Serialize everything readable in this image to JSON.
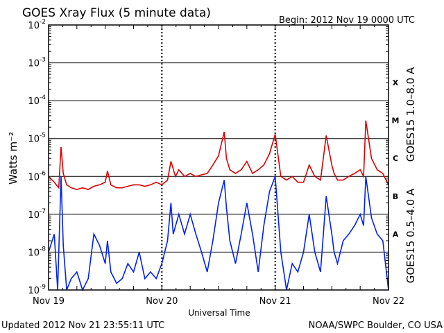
{
  "header": {
    "title": "GOES Xray Flux (5 minute data)",
    "begin": "Begin:  2012 Nov 19 0000 UTC"
  },
  "footer": {
    "updated": "Updated 2012 Nov 21 23:55:11 UTC",
    "credit": "NOAA/SWPC Boulder, CO USA"
  },
  "chart_data": {
    "type": "line",
    "title": "GOES Xray Flux (5 minute data)",
    "xlabel": "Universal Time",
    "ylabel": "Watts m⁻²",
    "yscale": "log",
    "ylim": [
      1e-09,
      0.01
    ],
    "xlim": [
      0,
      3
    ],
    "x_ticks": [
      {
        "value": 0,
        "label": "Nov 19"
      },
      {
        "value": 1,
        "label": "Nov 20"
      },
      {
        "value": 2,
        "label": "Nov 21"
      },
      {
        "value": 3,
        "label": "Nov 22"
      }
    ],
    "y_ticks": [
      {
        "exp": -9,
        "value": 1e-09
      },
      {
        "exp": -8,
        "value": 1e-08
      },
      {
        "exp": -7,
        "value": 1e-07
      },
      {
        "exp": -6,
        "value": 1e-06
      },
      {
        "exp": -5,
        "value": 1e-05
      },
      {
        "exp": -4,
        "value": 0.0001
      },
      {
        "exp": -3,
        "value": 0.001
      },
      {
        "exp": -2,
        "value": 0.01
      }
    ],
    "flare_classes": [
      {
        "label": "X",
        "value": 0.0003
      },
      {
        "label": "M",
        "value": 3e-05
      },
      {
        "label": "C",
        "value": 3e-06
      },
      {
        "label": "B",
        "value": 3e-07
      },
      {
        "label": "A",
        "value": 3e-08
      }
    ],
    "grid": true,
    "series": [
      {
        "name": "GOES15 1.0–8.0 A",
        "color": "#dd0000",
        "x": [
          0,
          0.05,
          0.09,
          0.11,
          0.13,
          0.16,
          0.2,
          0.25,
          0.3,
          0.35,
          0.4,
          0.45,
          0.5,
          0.52,
          0.55,
          0.6,
          0.65,
          0.7,
          0.75,
          0.8,
          0.85,
          0.9,
          0.95,
          1.0,
          1.05,
          1.08,
          1.12,
          1.15,
          1.2,
          1.25,
          1.3,
          1.35,
          1.4,
          1.45,
          1.5,
          1.55,
          1.57,
          1.6,
          1.65,
          1.7,
          1.75,
          1.8,
          1.85,
          1.9,
          1.95,
          2.0,
          2.05,
          2.1,
          2.15,
          2.2,
          2.25,
          2.3,
          2.35,
          2.4,
          2.45,
          2.5,
          2.52,
          2.55,
          2.6,
          2.65,
          2.7,
          2.75,
          2.78,
          2.8,
          2.85,
          2.9,
          2.95,
          3.0
        ],
        "y": [
          1e-06,
          7e-07,
          5e-07,
          6e-06,
          1.2e-06,
          6e-07,
          5e-07,
          4.5e-07,
          5e-07,
          4.5e-07,
          5.5e-07,
          6e-07,
          7e-07,
          1.4e-06,
          6e-07,
          5e-07,
          5e-07,
          5.5e-07,
          6e-07,
          6e-07,
          5.5e-07,
          6e-07,
          7e-07,
          6e-07,
          8e-07,
          2.5e-06,
          1e-06,
          1.5e-06,
          1e-06,
          1.2e-06,
          1e-06,
          1.1e-06,
          1.2e-06,
          2e-06,
          3.5e-06,
          1.5e-05,
          3e-06,
          1.5e-06,
          1.2e-06,
          1.5e-06,
          2.5e-06,
          1.2e-06,
          1.5e-06,
          2e-06,
          4e-06,
          1.3e-05,
          1e-06,
          8e-07,
          1e-06,
          7e-07,
          7e-07,
          2e-06,
          1e-06,
          8e-07,
          1.2e-05,
          2e-06,
          1.2e-06,
          8e-07,
          8e-07,
          1e-06,
          1.2e-06,
          1.5e-06,
          1e-06,
          3e-05,
          3e-06,
          1.5e-06,
          1.2e-06,
          6e-07
        ]
      },
      {
        "name": "GOES15 0.5–4.0 A",
        "color": "#0022ee",
        "x": [
          0,
          0.05,
          0.08,
          0.11,
          0.13,
          0.16,
          0.2,
          0.25,
          0.3,
          0.35,
          0.4,
          0.45,
          0.5,
          0.52,
          0.55,
          0.6,
          0.65,
          0.7,
          0.75,
          0.8,
          0.85,
          0.9,
          0.95,
          1.0,
          1.05,
          1.08,
          1.1,
          1.15,
          1.2,
          1.25,
          1.3,
          1.35,
          1.4,
          1.45,
          1.5,
          1.55,
          1.57,
          1.6,
          1.65,
          1.7,
          1.75,
          1.8,
          1.85,
          1.9,
          1.95,
          2.0,
          2.05,
          2.1,
          2.15,
          2.2,
          2.25,
          2.3,
          2.35,
          2.4,
          2.45,
          2.5,
          2.52,
          2.55,
          2.6,
          2.65,
          2.7,
          2.75,
          2.78,
          2.8,
          2.85,
          2.9,
          2.95,
          3.0
        ],
        "y": [
          1e-08,
          3e-08,
          1e-09,
          1e-06,
          1.5e-08,
          1e-09,
          2e-09,
          3e-09,
          1e-09,
          2e-09,
          3e-08,
          1.5e-08,
          5e-09,
          2e-08,
          3e-09,
          1.5e-09,
          2e-09,
          5e-09,
          3e-09,
          1e-08,
          2e-09,
          3e-09,
          2e-09,
          5e-09,
          2e-08,
          2e-07,
          3e-08,
          1e-07,
          3e-08,
          1e-07,
          3e-08,
          1e-08,
          3e-09,
          2e-08,
          2e-07,
          8e-07,
          1.5e-07,
          2e-08,
          5e-09,
          3e-08,
          2e-07,
          3e-08,
          3e-09,
          5e-08,
          4e-07,
          1e-06,
          1e-08,
          1e-09,
          5e-09,
          3e-09,
          1e-08,
          1e-07,
          1e-08,
          3e-09,
          3e-07,
          3e-08,
          1e-08,
          5e-09,
          2e-08,
          3e-08,
          5e-08,
          1e-07,
          5e-08,
          1e-06,
          8e-08,
          3e-08,
          2e-08,
          1e-09
        ]
      }
    ]
  }
}
